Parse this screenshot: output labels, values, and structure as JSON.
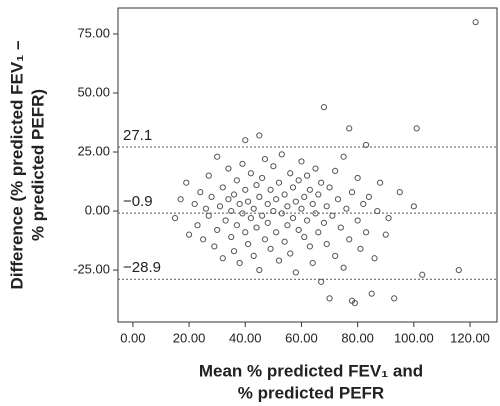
{
  "chart_data": {
    "type": "scatter",
    "xlabel": [
      "Mean % predicted FEV₁ and",
      "% predicted PEFR"
    ],
    "ylabel": [
      "Difference (% predicted FEV₁ –",
      "% predicted PEFR)"
    ],
    "xlim": [
      -5.3,
      129.6
    ],
    "ylim": [
      -47,
      86
    ],
    "xticks": [
      {
        "value": 0,
        "label": "0.00"
      },
      {
        "value": 20,
        "label": "20.00"
      },
      {
        "value": 40,
        "label": "40.00"
      },
      {
        "value": 60,
        "label": "60.00"
      },
      {
        "value": 80,
        "label": "80.00"
      },
      {
        "value": 100,
        "label": "100.00"
      },
      {
        "value": 120,
        "label": "120.00"
      }
    ],
    "yticks": [
      {
        "value": -25,
        "label": "-25.00"
      },
      {
        "value": 0,
        "label": "0.00"
      },
      {
        "value": 25,
        "label": "25.00"
      },
      {
        "value": 50,
        "label": "50.00"
      },
      {
        "value": 75,
        "label": "75.00"
      }
    ],
    "reference_lines": [
      27.1,
      {
        "value": -0.9,
        "label": "−0.9"
      },
      {
        "value": -28.9,
        "label": "−28.9"
      }
    ],
    "color": "#555555",
    "x": [
      15,
      17,
      19,
      20,
      22,
      23,
      24,
      25,
      26,
      27,
      27,
      28,
      29,
      30,
      30,
      31,
      32,
      32,
      33,
      34,
      34,
      35,
      35,
      36,
      36,
      37,
      37,
      38,
      38,
      39,
      39,
      40,
      40,
      40,
      41,
      41,
      42,
      42,
      43,
      43,
      44,
      44,
      45,
      45,
      45,
      46,
      46,
      47,
      47,
      48,
      48,
      49,
      49,
      50,
      50,
      51,
      51,
      52,
      52,
      53,
      53,
      54,
      54,
      55,
      55,
      56,
      56,
      57,
      57,
      58,
      58,
      59,
      59,
      60,
      60,
      61,
      61,
      62,
      62,
      63,
      63,
      64,
      64,
      65,
      65,
      66,
      66,
      67,
      67,
      68,
      68,
      69,
      69,
      70,
      70,
      71,
      72,
      72,
      73,
      74,
      75,
      75,
      76,
      77,
      77,
      78,
      78,
      79,
      80,
      80,
      81,
      82,
      83,
      83,
      84,
      85,
      86,
      87,
      88,
      90,
      91,
      93,
      95,
      100,
      101,
      103,
      116,
      122
    ],
    "values": [
      -3,
      5,
      12,
      -10,
      3,
      -6,
      8,
      -12,
      1,
      15,
      -2,
      6,
      -15,
      23,
      -8,
      2,
      10,
      -20,
      -4,
      5,
      18,
      -11,
      0,
      7,
      -17,
      13,
      -6,
      3,
      -22,
      20,
      -1,
      30,
      9,
      -9,
      4,
      -14,
      16,
      -3,
      1,
      -19,
      11,
      -7,
      32,
      6,
      -25,
      -2,
      14,
      22,
      -12,
      3,
      -5,
      9,
      -16,
      0,
      19,
      -9,
      5,
      12,
      -21,
      -1,
      24,
      7,
      -13,
      2,
      -6,
      16,
      -18,
      -3,
      10,
      4,
      -26,
      13,
      -8,
      1,
      21,
      -11,
      6,
      -4,
      15,
      -15,
      9,
      3,
      -22,
      -1,
      18,
      7,
      -9,
      12,
      -30,
      44,
      -5,
      2,
      -14,
      -37,
      10,
      -2,
      17,
      -19,
      5,
      -7,
      23,
      -24,
      1,
      35,
      -12,
      -38,
      8,
      -39,
      -4,
      14,
      -16,
      3,
      28,
      -9,
      6,
      -35,
      -20,
      0,
      12,
      -10,
      -3,
      -37,
      8,
      2,
      35,
      -27,
      -25,
      80
    ]
  }
}
